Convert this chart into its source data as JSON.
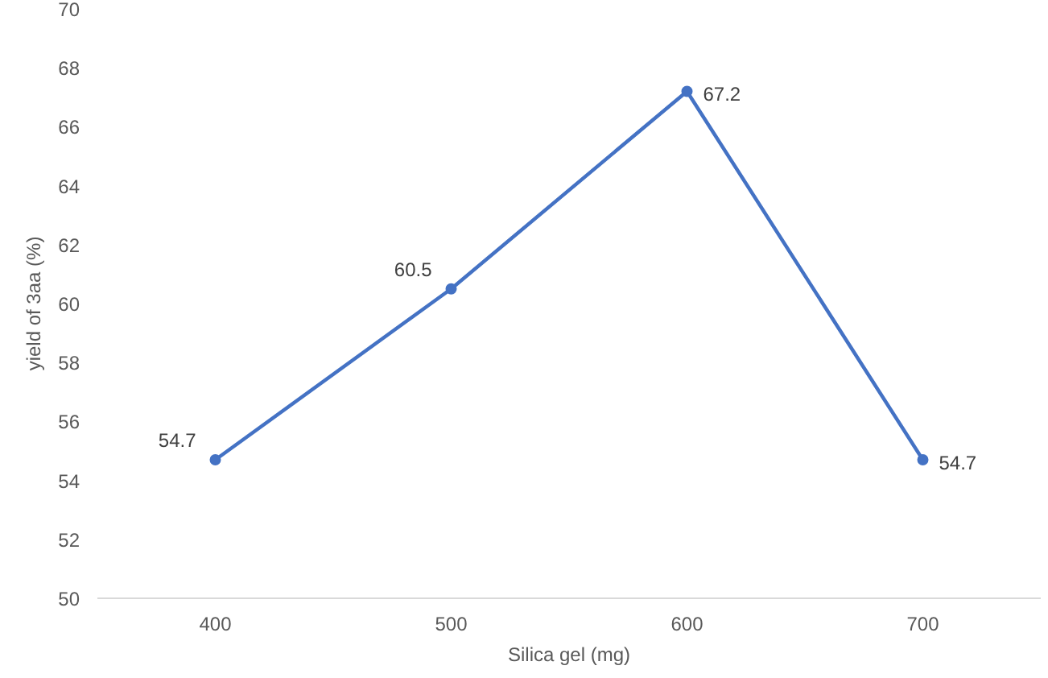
{
  "chart_data": {
    "type": "line",
    "xlabel": "Silica gel (mg)",
    "ylabel": "yield of 3aa (%)",
    "categories": [
      "400",
      "500",
      "600",
      "700"
    ],
    "series": [
      {
        "color": "#4472c4",
        "values": [
          54.7,
          60.5,
          67.2,
          54.7
        ]
      }
    ],
    "ylim": [
      50,
      70
    ],
    "yticks": [
      50,
      52,
      54,
      56,
      58,
      60,
      62,
      64,
      66,
      68,
      70
    ],
    "grid": false,
    "marker": "circle",
    "line_style": "solid",
    "data_labels": true
  }
}
